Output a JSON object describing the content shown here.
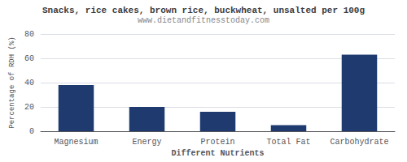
{
  "chart_data": {
    "type": "bar",
    "title": "Snacks, rice cakes, brown rice, buckwheat, unsalted per 100g",
    "subtitle": "www.dietandfitnesstoday.com",
    "xlabel": "Different Nutrients",
    "ylabel": "Percentage of RDH (%)",
    "categories": [
      "Magnesium",
      "Energy",
      "Protein",
      "Total Fat",
      "Carbohydrate"
    ],
    "values": [
      38,
      20,
      16,
      5,
      63
    ],
    "color": "#1e3a6e",
    "ylim": [
      0,
      80
    ],
    "yticks": [
      0,
      20,
      40,
      60,
      80
    ],
    "grid": true
  }
}
